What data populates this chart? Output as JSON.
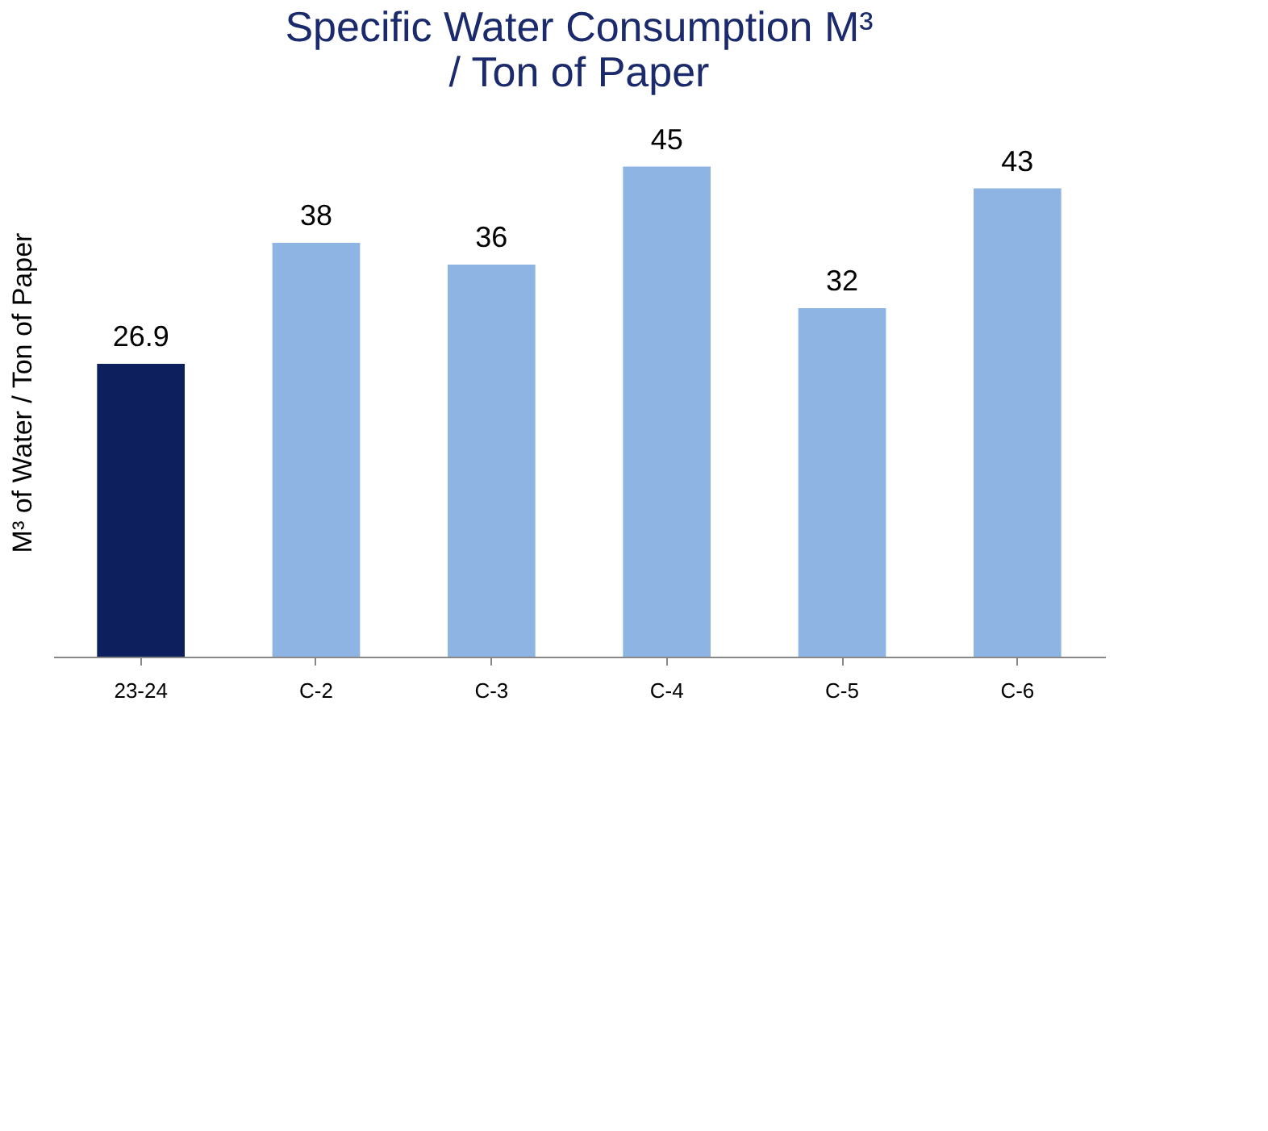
{
  "chart_data": {
    "type": "bar",
    "title": [
      "Specific Water Consumption  M³",
      "/ Ton of Paper"
    ],
    "ylabel": "M³ of Water / Ton of Paper",
    "categories": [
      "23-24",
      "C-2",
      "C-3",
      "C-4",
      "C-5",
      "C-6"
    ],
    "values": [
      26.9,
      38,
      36,
      45,
      32,
      43
    ],
    "colors": [
      "#0d1f5c",
      "#8eb4e3",
      "#8eb4e3",
      "#8eb4e3",
      "#8eb4e3",
      "#8eb4e3"
    ],
    "data_labels": true,
    "grid": false
  }
}
